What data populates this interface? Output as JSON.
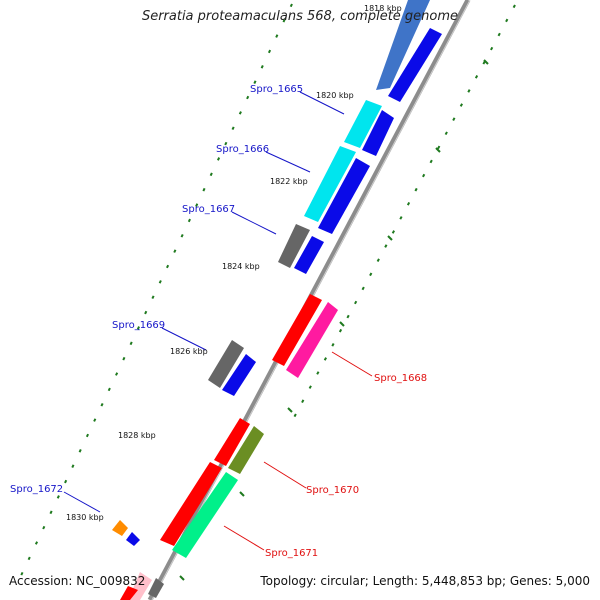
{
  "title": "Serratia proteamaculans 568, complete genome",
  "footer": {
    "accession": "Accession: NC_009832",
    "summary": "Topology: circular; Length: 5,448,853 bp; Genes: 5,000"
  },
  "colors": {
    "forward_label": "#1515c8",
    "reverse_label": "#e01010",
    "backbone": "#8c8c8c",
    "tick": "#1f7a1f"
  },
  "ticks": [
    "1818 kbp",
    "1820 kbp",
    "1822 kbp",
    "1824 kbp",
    "1826 kbp",
    "1828 kbp",
    "1830 kbp"
  ],
  "genes": {
    "forward": [
      "Spro_1665",
      "Spro_1666",
      "Spro_1667",
      "Spro_1669",
      "Spro_1672"
    ],
    "reverse": [
      "Spro_1668",
      "Spro_1670",
      "Spro_1671"
    ]
  }
}
